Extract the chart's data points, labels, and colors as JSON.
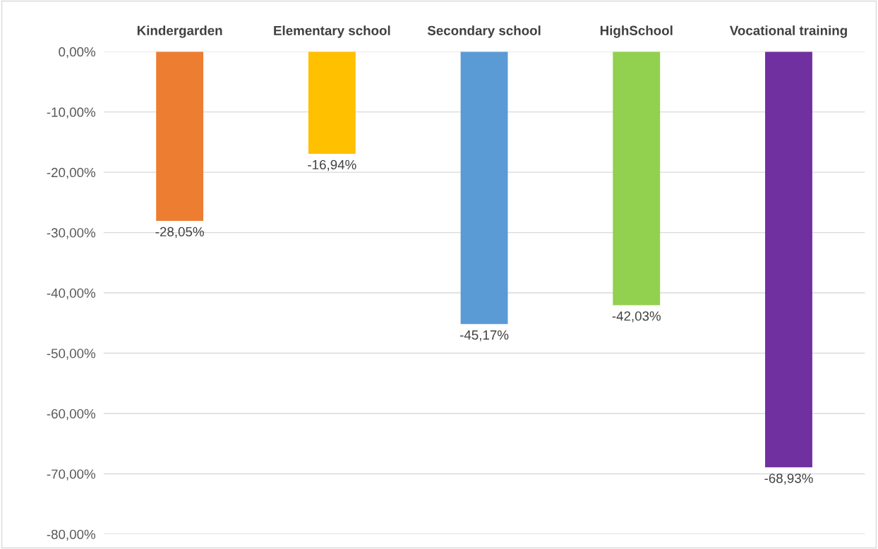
{
  "chart_data": {
    "type": "bar",
    "categories": [
      "Kindergarden",
      "Elementary school",
      "Secondary school",
      "HighSchool",
      "Vocational training"
    ],
    "values": [
      -28.05,
      -16.94,
      -45.17,
      -42.03,
      -68.93
    ],
    "value_labels": [
      "-28,05%",
      "-16,94%",
      "-45,17%",
      "-42,03%",
      "-68,93%"
    ],
    "colors": [
      "#ed7d31",
      "#ffc000",
      "#5b9bd5",
      "#92d050",
      "#7030a0"
    ],
    "ylim": [
      -80,
      0
    ],
    "yticks": [
      {
        "value": 0,
        "label": "0,00%"
      },
      {
        "value": -10,
        "label": "-10,00%"
      },
      {
        "value": -20,
        "label": "-20,00%"
      },
      {
        "value": -30,
        "label": "-30,00%"
      },
      {
        "value": -40,
        "label": "-40,00%"
      },
      {
        "value": -50,
        "label": "-50,00%"
      },
      {
        "value": -60,
        "label": "-60,00%"
      },
      {
        "value": -70,
        "label": "-70,00%"
      },
      {
        "value": -80,
        "label": "-80,00%"
      }
    ],
    "grid": "y"
  }
}
